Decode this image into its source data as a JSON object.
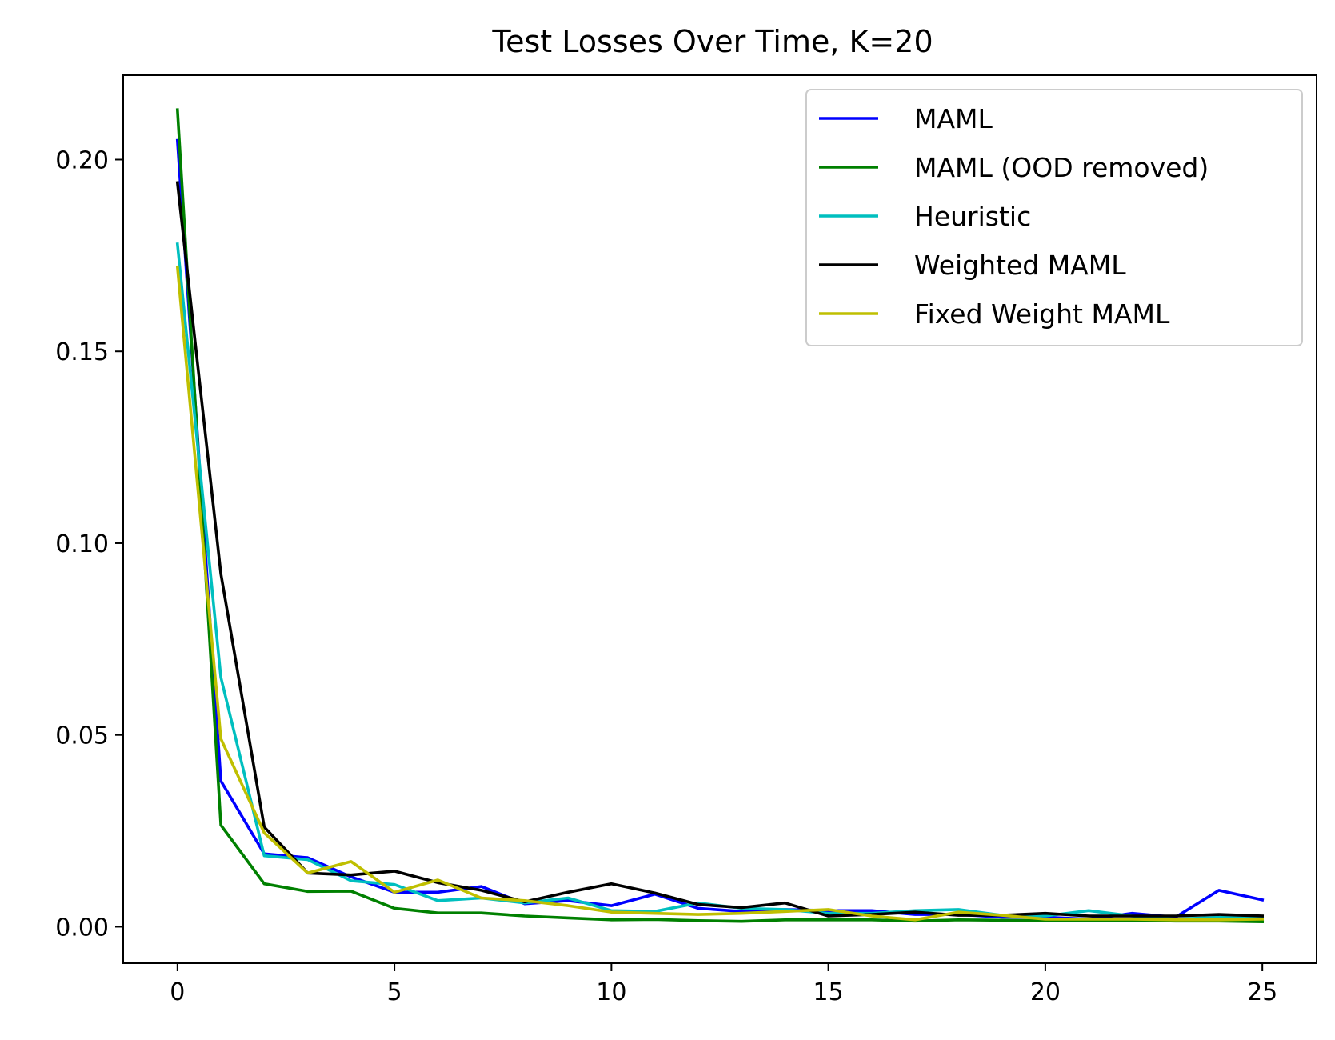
{
  "chart_data": {
    "type": "line",
    "title": "Test Losses Over Time, K=20",
    "xlabel": "",
    "ylabel": "",
    "xlim": [
      -1.25,
      26.25
    ],
    "ylim": [
      -0.0095,
      0.222
    ],
    "xticks": [
      0,
      5,
      10,
      15,
      20,
      25
    ],
    "xtick_labels": [
      "0",
      "5",
      "10",
      "15",
      "20",
      "25"
    ],
    "yticks": [
      0.0,
      0.05,
      0.1,
      0.15,
      0.2
    ],
    "ytick_labels": [
      "0.00",
      "0.05",
      "0.10",
      "0.15",
      "0.20"
    ],
    "grid": false,
    "legend_position": "top-right",
    "x": [
      0,
      1,
      2,
      3,
      4,
      5,
      6,
      7,
      8,
      9,
      10,
      11,
      12,
      13,
      14,
      15,
      16,
      17,
      18,
      19,
      20,
      21,
      22,
      23,
      24,
      25
    ],
    "series": [
      {
        "name": "MAML",
        "color": "#0000ff",
        "values": [
          0.205,
          0.038,
          0.019,
          0.018,
          0.013,
          0.009,
          0.009,
          0.0105,
          0.006,
          0.0068,
          0.0055,
          0.0085,
          0.0048,
          0.004,
          0.0045,
          0.0042,
          0.0042,
          0.0032,
          0.0032,
          0.0025,
          0.0025,
          0.002,
          0.0035,
          0.0025,
          0.0095,
          0.007
        ]
      },
      {
        "name": "MAML (OOD removed)",
        "color": "#008000",
        "values": [
          0.213,
          0.0265,
          0.0112,
          0.0092,
          0.0093,
          0.0048,
          0.0036,
          0.0036,
          0.0028,
          0.0023,
          0.0018,
          0.0019,
          0.0016,
          0.0014,
          0.0018,
          0.0018,
          0.0018,
          0.0015,
          0.0018,
          0.0017,
          0.0016,
          0.0017,
          0.0017,
          0.0015,
          0.0015,
          0.0013
        ]
      },
      {
        "name": "Heuristic",
        "color": "#00bfbf",
        "values": [
          0.178,
          0.065,
          0.0185,
          0.0175,
          0.012,
          0.011,
          0.0068,
          0.0075,
          0.0062,
          0.0075,
          0.0042,
          0.004,
          0.0062,
          0.0048,
          0.0045,
          0.0035,
          0.0035,
          0.0042,
          0.0045,
          0.003,
          0.0028,
          0.0042,
          0.0028,
          0.002,
          0.0025,
          0.0022
        ]
      },
      {
        "name": "Weighted MAML",
        "color": "#000000",
        "values": [
          0.194,
          0.092,
          0.026,
          0.014,
          0.0135,
          0.0145,
          0.0115,
          0.0095,
          0.0065,
          0.009,
          0.0112,
          0.0088,
          0.0058,
          0.005,
          0.0062,
          0.0028,
          0.0032,
          0.0038,
          0.003,
          0.003,
          0.0035,
          0.0028,
          0.0028,
          0.0028,
          0.0032,
          0.0028
        ]
      },
      {
        "name": "Fixed Weight MAML",
        "color": "#bfbf00",
        "values": [
          0.172,
          0.049,
          0.0245,
          0.014,
          0.017,
          0.009,
          0.0122,
          0.0075,
          0.0068,
          0.0055,
          0.0038,
          0.0035,
          0.0032,
          0.0035,
          0.004,
          0.0045,
          0.0028,
          0.0018,
          0.0038,
          0.003,
          0.002,
          0.002,
          0.002,
          0.0018,
          0.0018,
          0.002
        ]
      }
    ]
  }
}
